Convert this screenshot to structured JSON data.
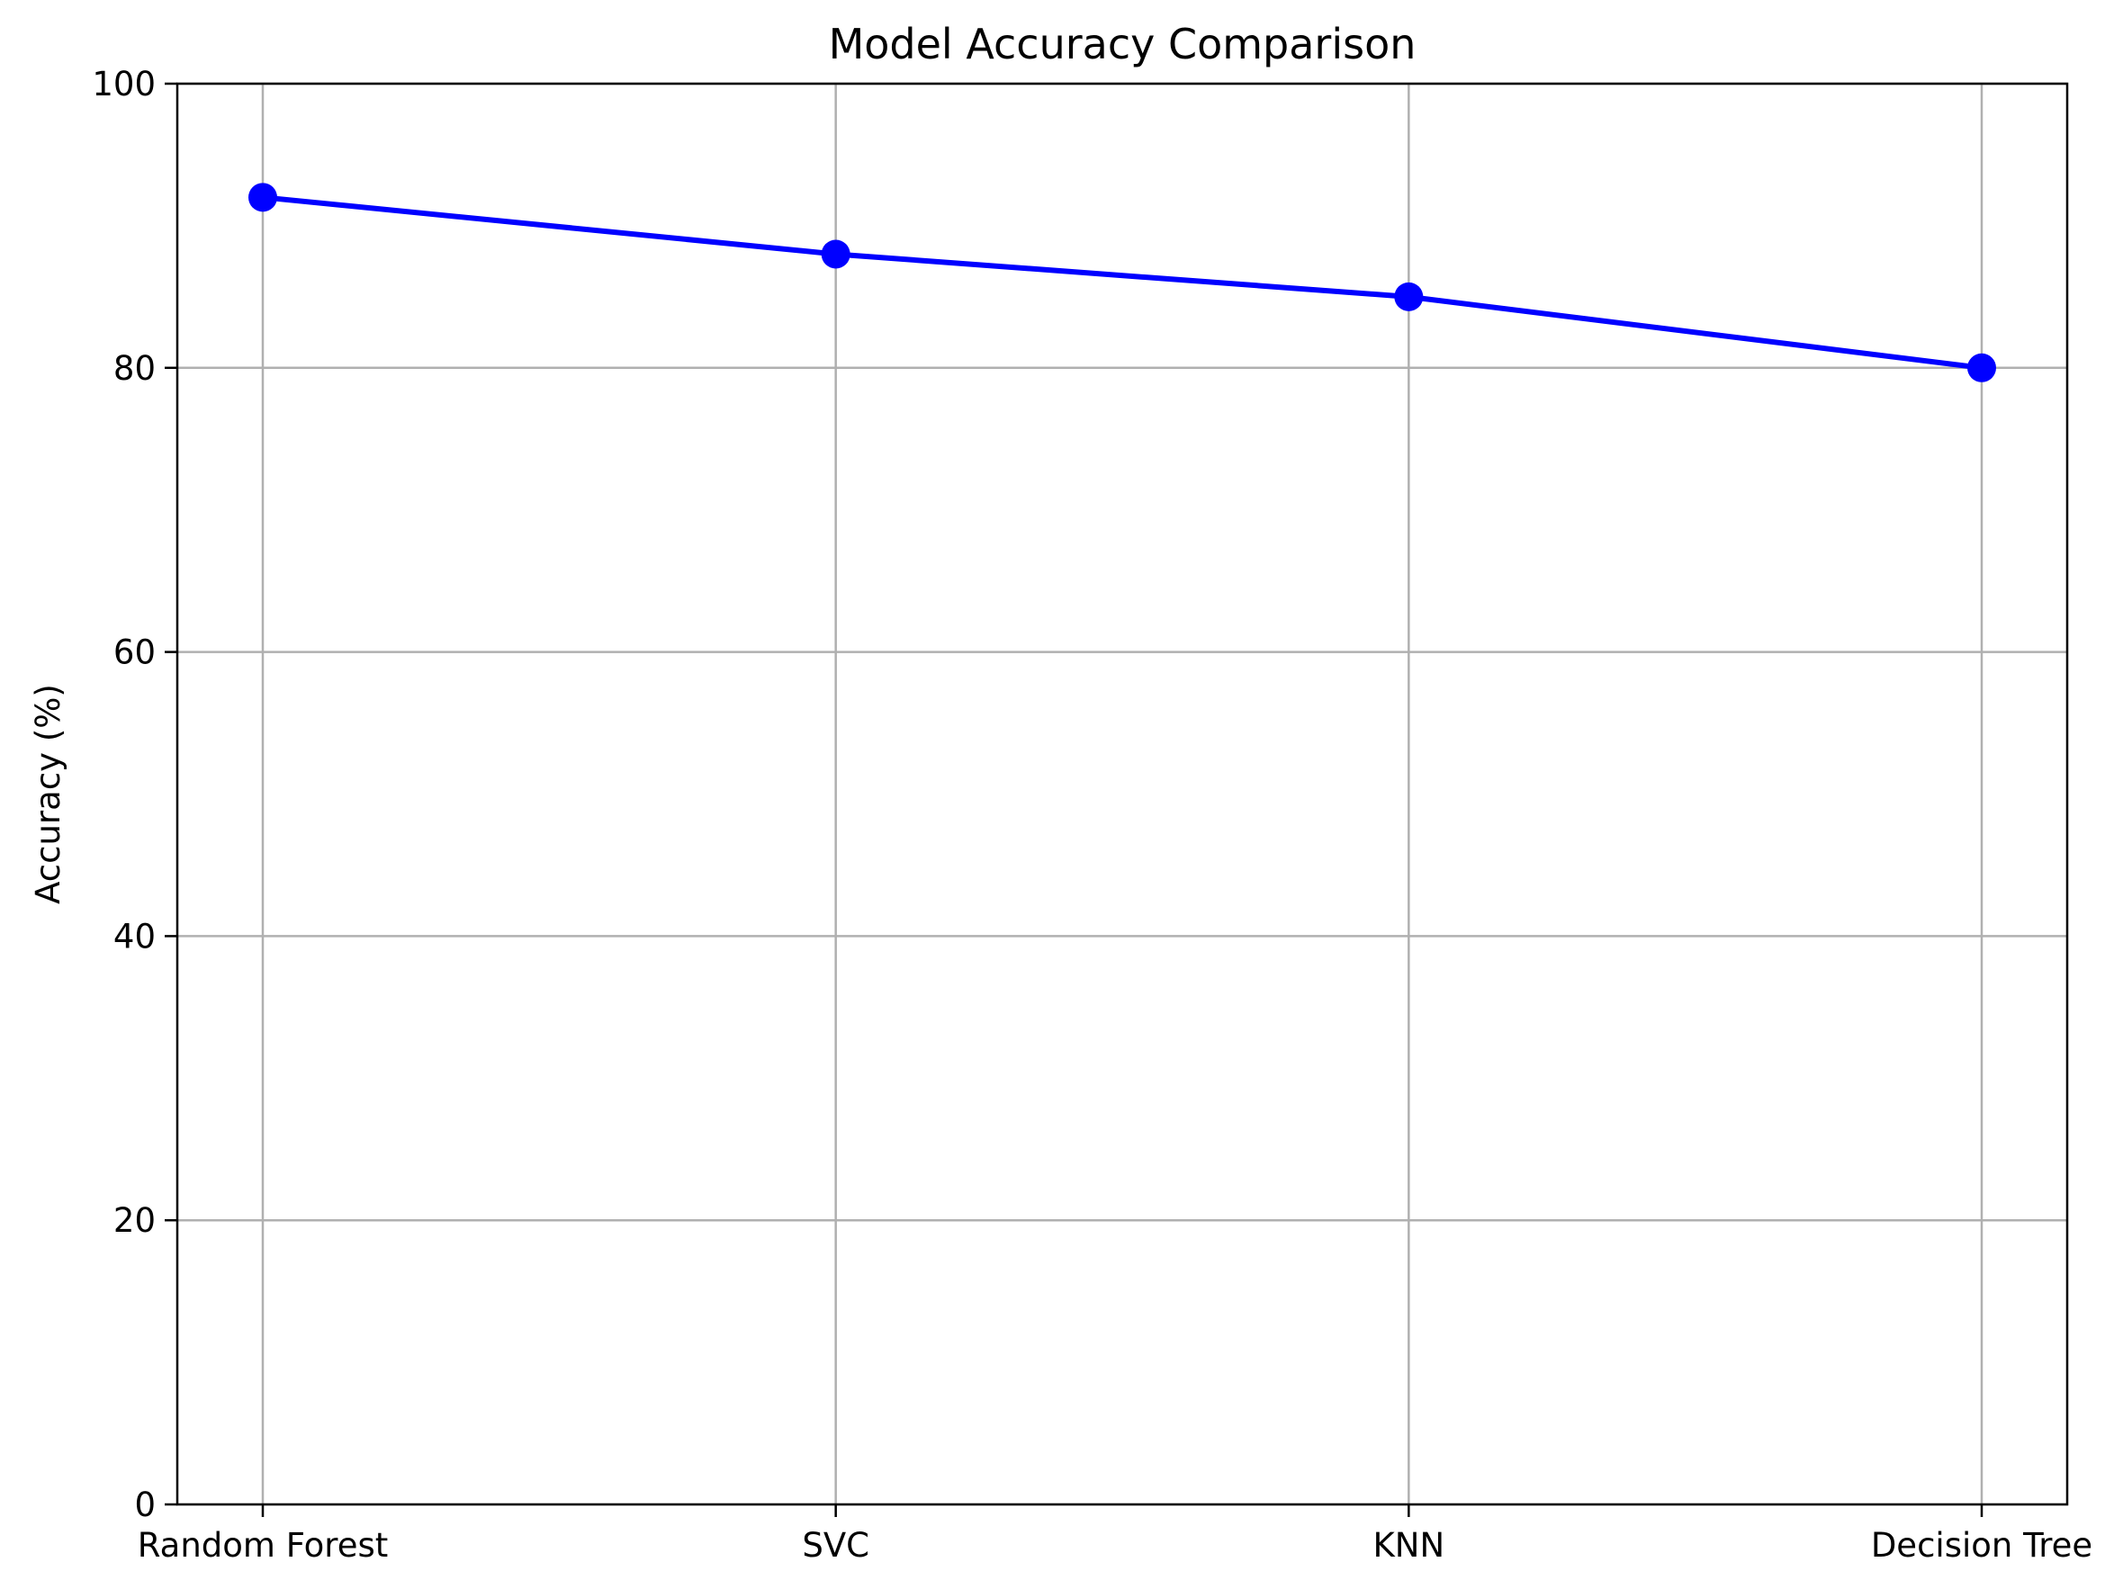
{
  "chart_data": {
    "type": "line",
    "title": "Model Accuracy Comparison",
    "xlabel": "",
    "ylabel": "Accuracy (%)",
    "categories": [
      "Random Forest",
      "SVC",
      "KNN",
      "Decision Tree"
    ],
    "series": [
      {
        "name": "Accuracy",
        "values": [
          92,
          88,
          85,
          80
        ],
        "color": "#0000ff",
        "marker": "circle"
      }
    ],
    "ylim": [
      0,
      100
    ],
    "yticks": [
      0,
      20,
      40,
      60,
      80,
      100
    ],
    "ytick_labels": [
      "0",
      "20",
      "40",
      "60",
      "80",
      "100"
    ],
    "grid": true,
    "legend": "none"
  }
}
